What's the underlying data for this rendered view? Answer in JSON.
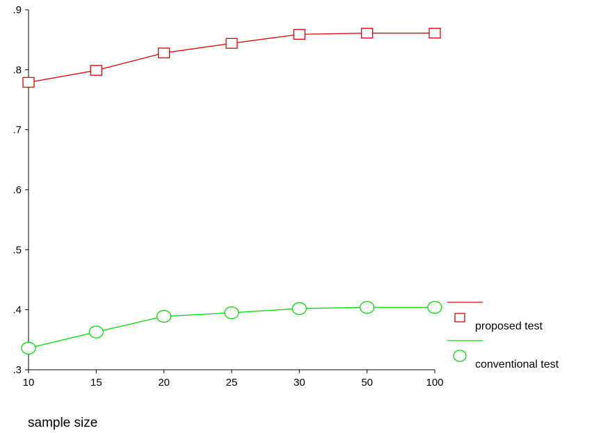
{
  "chart_data": {
    "type": "line",
    "title": "",
    "xlabel": "sample size",
    "ylabel": "",
    "categories": [
      "10",
      "15",
      "20",
      "25",
      "30",
      "50",
      "100"
    ],
    "ylim": [
      0.3,
      0.9
    ],
    "yticks": [
      ".3",
      ".4",
      ".5",
      ".6",
      ".7",
      ".8",
      ".9"
    ],
    "grid": false,
    "legend_position": "right",
    "series": [
      {
        "name": "proposed test",
        "color": "#e00000",
        "marker": "square",
        "values": [
          0.779,
          0.799,
          0.828,
          0.844,
          0.859,
          0.861,
          0.861
        ]
      },
      {
        "name": "conventional test",
        "color": "#00e000",
        "marker": "circle",
        "values": [
          0.336,
          0.363,
          0.389,
          0.395,
          0.402,
          0.404,
          0.404
        ]
      }
    ]
  }
}
